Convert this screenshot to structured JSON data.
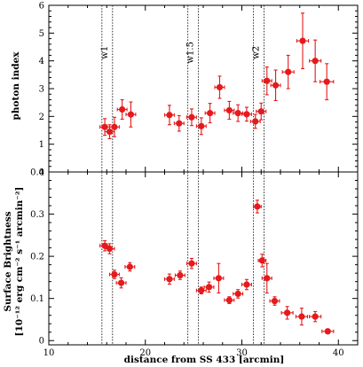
{
  "colors": {
    "points": "#e41a1c",
    "axes": "#000000"
  },
  "chart_data": [
    {
      "type": "scatter",
      "ylabel": "photon index",
      "xlim": [
        10,
        42
      ],
      "ylim": [
        0,
        6
      ],
      "yticks": [
        "0",
        "1",
        "2",
        "3",
        "4",
        "5",
        "6"
      ],
      "region_lines": [
        15.5,
        16.6,
        24.4,
        25.5,
        31.2,
        32.3
      ],
      "region_labels": [
        {
          "text": "w1",
          "x": 16.05
        },
        {
          "text": "w1.5",
          "x": 24.95
        },
        {
          "text": "w2",
          "x": 31.75
        }
      ],
      "points": [
        {
          "x": 15.8,
          "y": 1.62,
          "xerr": 0.5,
          "yerr": 0.3
        },
        {
          "x": 16.3,
          "y": 1.45,
          "xerr": 0.5,
          "yerr": 0.25
        },
        {
          "x": 16.8,
          "y": 1.62,
          "xerr": 0.5,
          "yerr": 0.35
        },
        {
          "x": 17.6,
          "y": 2.25,
          "xerr": 0.5,
          "yerr": 0.35
        },
        {
          "x": 18.5,
          "y": 2.07,
          "xerr": 0.5,
          "yerr": 0.45
        },
        {
          "x": 22.5,
          "y": 2.05,
          "xerr": 0.5,
          "yerr": 0.35
        },
        {
          "x": 23.5,
          "y": 1.75,
          "xerr": 0.5,
          "yerr": 0.28
        },
        {
          "x": 24.8,
          "y": 1.97,
          "xerr": 0.5,
          "yerr": 0.3
        },
        {
          "x": 25.8,
          "y": 1.65,
          "xerr": 0.5,
          "yerr": 0.3
        },
        {
          "x": 26.7,
          "y": 2.12,
          "xerr": 0.5,
          "yerr": 0.35
        },
        {
          "x": 27.7,
          "y": 3.05,
          "xerr": 0.5,
          "yerr": 0.4
        },
        {
          "x": 28.7,
          "y": 2.22,
          "xerr": 0.5,
          "yerr": 0.32
        },
        {
          "x": 29.6,
          "y": 2.12,
          "xerr": 0.5,
          "yerr": 0.3
        },
        {
          "x": 30.5,
          "y": 2.08,
          "xerr": 0.5,
          "yerr": 0.25
        },
        {
          "x": 31.4,
          "y": 1.82,
          "xerr": 0.5,
          "yerr": 0.25
        },
        {
          "x": 32.0,
          "y": 2.18,
          "xerr": 0.5,
          "yerr": 0.3
        },
        {
          "x": 32.6,
          "y": 3.28,
          "xerr": 0.5,
          "yerr": 0.5
        },
        {
          "x": 33.5,
          "y": 3.12,
          "xerr": 0.5,
          "yerr": 0.55
        },
        {
          "x": 34.8,
          "y": 3.6,
          "xerr": 0.6,
          "yerr": 0.6
        },
        {
          "x": 36.3,
          "y": 4.72,
          "xerr": 0.6,
          "yerr": 1.0
        },
        {
          "x": 37.6,
          "y": 4.0,
          "xerr": 0.6,
          "yerr": 0.75
        },
        {
          "x": 38.8,
          "y": 3.25,
          "xerr": 0.7,
          "yerr": 0.65
        }
      ]
    },
    {
      "type": "scatter",
      "ylabel": "Surface Brightness",
      "ylabel2": "[10⁻¹² erg cm⁻² s⁻¹ arcmin⁻²]",
      "xlabel": "distance from SS 433 [arcmin]",
      "xlim": [
        10,
        42
      ],
      "ylim": [
        -0.01,
        0.4
      ],
      "yticks": [
        "0",
        "0.1",
        "0.2",
        "0.3",
        "0.4"
      ],
      "xticks": [
        "10",
        "20",
        "30",
        "40"
      ],
      "region_lines": [
        15.5,
        16.6,
        24.4,
        25.5,
        31.2,
        32.3
      ],
      "points": [
        {
          "x": 15.8,
          "y": 0.225,
          "xerr": 0.5,
          "yerr": 0.012
        },
        {
          "x": 16.3,
          "y": 0.218,
          "xerr": 0.5,
          "yerr": 0.012
        },
        {
          "x": 16.8,
          "y": 0.157,
          "xerr": 0.5,
          "yerr": 0.01
        },
        {
          "x": 17.5,
          "y": 0.137,
          "xerr": 0.5,
          "yerr": 0.012
        },
        {
          "x": 18.4,
          "y": 0.175,
          "xerr": 0.5,
          "yerr": 0.01
        },
        {
          "x": 22.5,
          "y": 0.146,
          "xerr": 0.5,
          "yerr": 0.012
        },
        {
          "x": 23.6,
          "y": 0.155,
          "xerr": 0.5,
          "yerr": 0.01
        },
        {
          "x": 24.8,
          "y": 0.183,
          "xerr": 0.5,
          "yerr": 0.012
        },
        {
          "x": 25.8,
          "y": 0.119,
          "xerr": 0.5,
          "yerr": 0.008
        },
        {
          "x": 26.6,
          "y": 0.127,
          "xerr": 0.5,
          "yerr": 0.012
        },
        {
          "x": 27.6,
          "y": 0.148,
          "xerr": 0.5,
          "yerr": 0.035
        },
        {
          "x": 28.7,
          "y": 0.096,
          "xerr": 0.5,
          "yerr": 0.008
        },
        {
          "x": 29.6,
          "y": 0.111,
          "xerr": 0.5,
          "yerr": 0.01
        },
        {
          "x": 30.5,
          "y": 0.133,
          "xerr": 0.5,
          "yerr": 0.012
        },
        {
          "x": 31.6,
          "y": 0.318,
          "xerr": 0.4,
          "yerr": 0.015
        },
        {
          "x": 32.1,
          "y": 0.19,
          "xerr": 0.4,
          "yerr": 0.015
        },
        {
          "x": 32.6,
          "y": 0.148,
          "xerr": 0.5,
          "yerr": 0.035
        },
        {
          "x": 33.4,
          "y": 0.094,
          "xerr": 0.5,
          "yerr": 0.01
        },
        {
          "x": 34.7,
          "y": 0.066,
          "xerr": 0.6,
          "yerr": 0.015
        },
        {
          "x": 36.2,
          "y": 0.057,
          "xerr": 0.6,
          "yerr": 0.02
        },
        {
          "x": 37.6,
          "y": 0.057,
          "xerr": 0.6,
          "yerr": 0.012
        },
        {
          "x": 38.9,
          "y": 0.022,
          "xerr": 0.6,
          "yerr": 0.005
        }
      ]
    }
  ]
}
